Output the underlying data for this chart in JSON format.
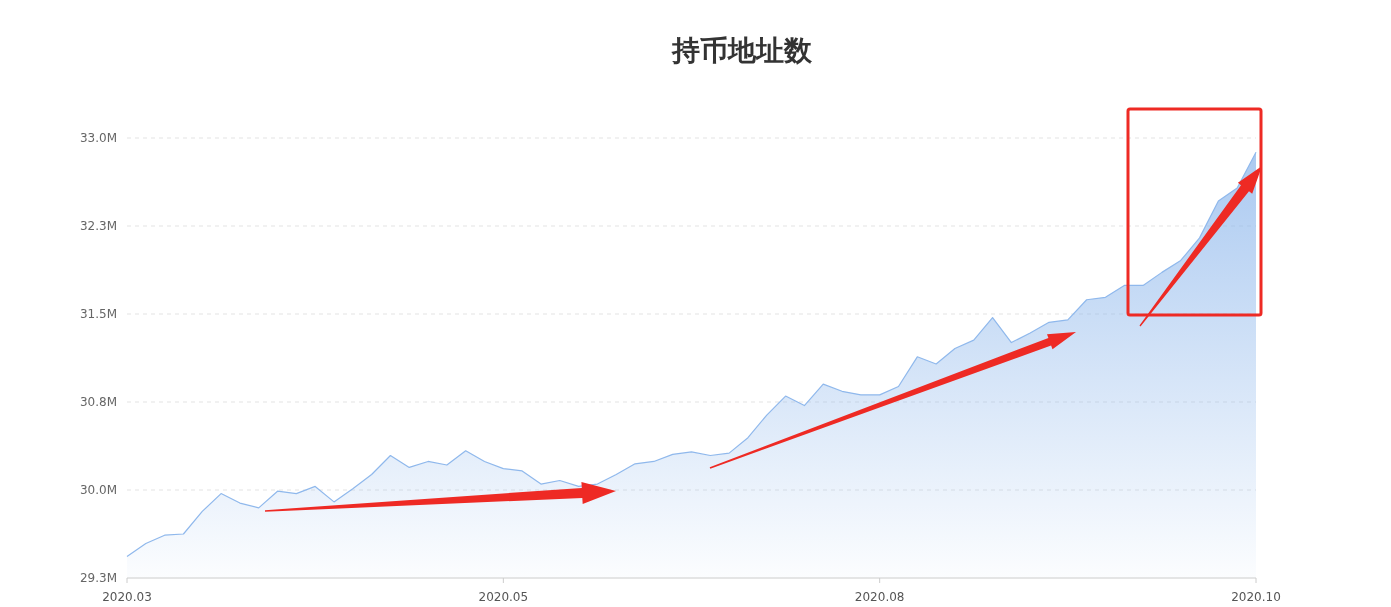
{
  "chart_data": {
    "type": "area",
    "title": "持币地址数",
    "categories": [
      "2020.03",
      null,
      null,
      null,
      null,
      null,
      null,
      null,
      null,
      null,
      null,
      null,
      null,
      null,
      null,
      null,
      null,
      null,
      null,
      null,
      "2020.05",
      null,
      null,
      null,
      null,
      null,
      null,
      null,
      null,
      null,
      null,
      null,
      null,
      null,
      null,
      null,
      null,
      null,
      null,
      null,
      "2020.08",
      null,
      null,
      null,
      null,
      null,
      null,
      null,
      null,
      null,
      null,
      null,
      null,
      null,
      null,
      null,
      null,
      null,
      null,
      null,
      "2020.10"
    ],
    "values": [
      29.48,
      29.59,
      29.66,
      29.67,
      29.86,
      30.01,
      29.93,
      29.89,
      30.03,
      30.01,
      30.07,
      29.94,
      30.05,
      30.17,
      30.33,
      30.23,
      30.28,
      30.25,
      30.37,
      30.28,
      30.22,
      30.2,
      30.09,
      30.12,
      30.07,
      30.09,
      30.17,
      30.26,
      30.28,
      30.34,
      30.36,
      30.33,
      30.35,
      30.48,
      30.67,
      30.83,
      30.75,
      30.93,
      30.87,
      30.84,
      30.84,
      30.91,
      31.16,
      31.1,
      31.23,
      31.3,
      31.49,
      31.28,
      31.36,
      31.45,
      31.47,
      31.64,
      31.66,
      31.76,
      31.76,
      31.87,
      31.97,
      32.16,
      32.47,
      32.58,
      32.88
    ],
    "color": "#8fb8ec",
    "ylim": [
      29.3,
      33.0
    ],
    "yticks": [
      {
        "value": 29.3,
        "label": "29.3M"
      },
      {
        "value": 30.04,
        "label": "30.0M"
      },
      {
        "value": 30.78,
        "label": "30.8M"
      },
      {
        "value": 31.52,
        "label": "31.5M"
      },
      {
        "value": 32.26,
        "label": "32.3M"
      },
      {
        "value": 33.0,
        "label": "33.0M"
      }
    ],
    "grid": "y"
  }
}
